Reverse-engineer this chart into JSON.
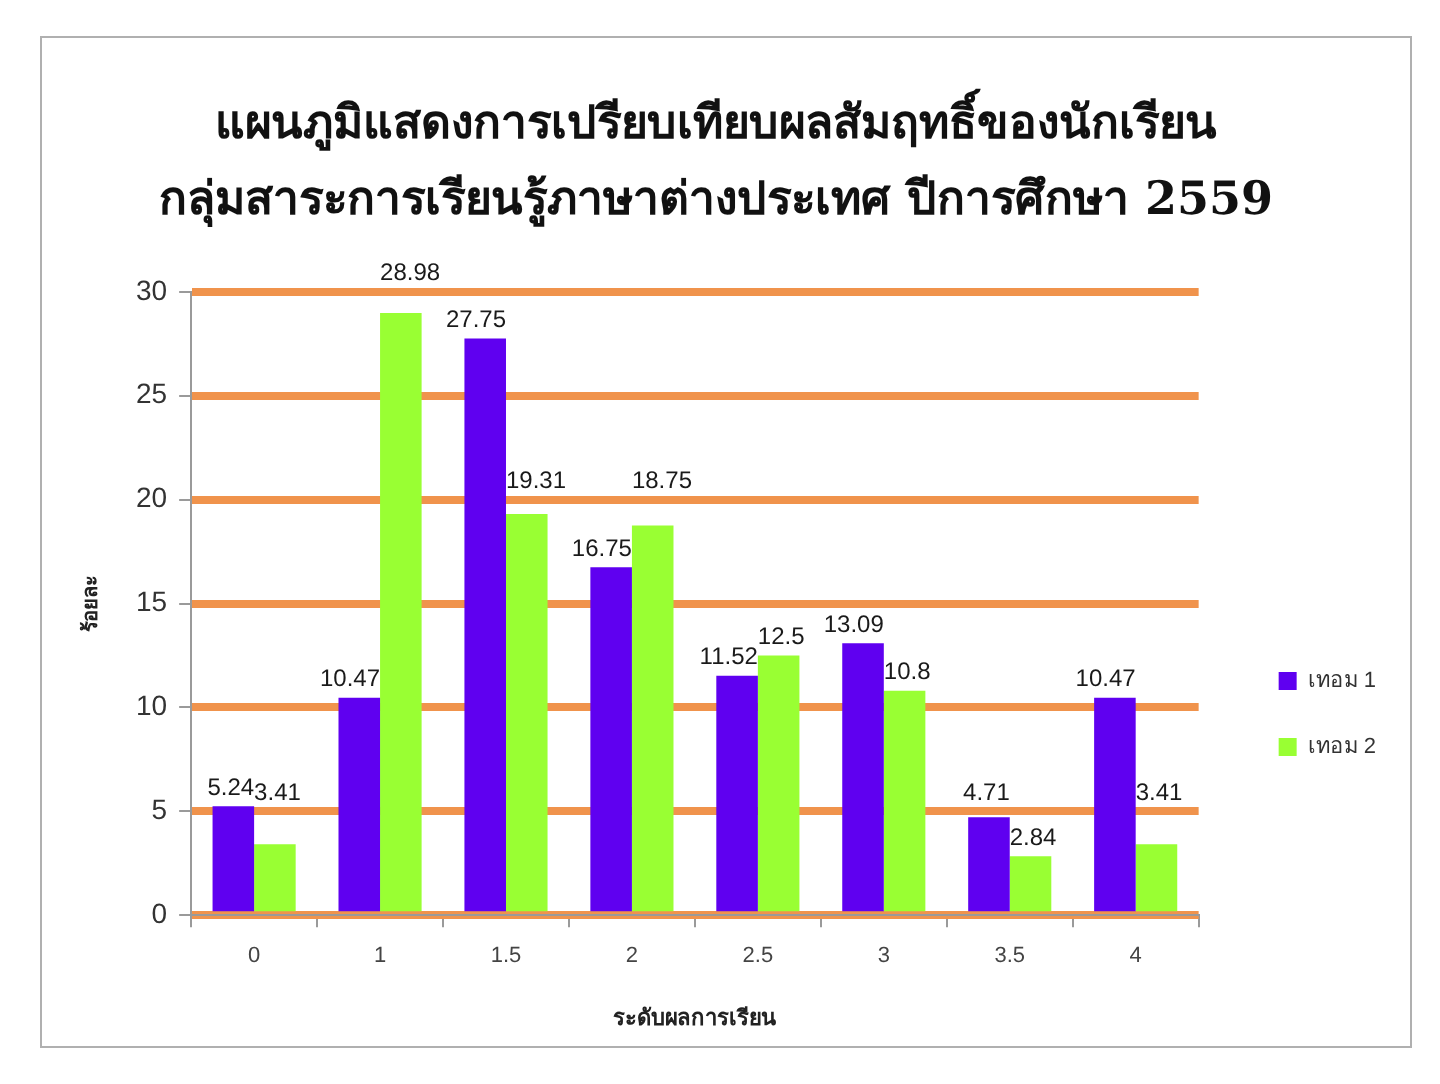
{
  "chart_data": {
    "type": "bar",
    "title": "แผนภูมิแสดงการเปรียบเทียบผลสัมฤทธิ์ของนักเรียน\nกลุ่มสาระการเรียนรู้ภาษาต่างประเทศ ปีการศึกษา 2559",
    "xlabel": "ระดับผลการเรียน",
    "ylabel": "ร้อยละ",
    "categories": [
      "0",
      "1",
      "1.5",
      "2",
      "2.5",
      "3",
      "3.5",
      "4"
    ],
    "series": [
      {
        "name": "เทอม 1",
        "color": "#5f00f0",
        "values": [
          5.24,
          10.47,
          27.75,
          16.75,
          11.52,
          13.09,
          4.71,
          10.47
        ]
      },
      {
        "name": "เทอม 2",
        "color": "#99ff33",
        "values": [
          3.41,
          28.98,
          19.31,
          18.75,
          12.5,
          10.8,
          2.84,
          3.41
        ]
      }
    ],
    "ylim": [
      0,
      30
    ],
    "yticks": [
      0,
      5,
      10,
      15,
      20,
      25,
      30
    ],
    "grid": "y",
    "legend": "right",
    "data_labels": true
  }
}
